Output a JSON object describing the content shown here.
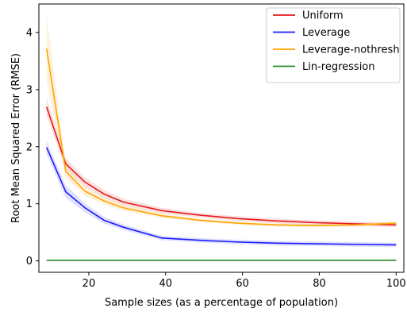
{
  "chart_data": {
    "type": "line",
    "title": "",
    "xlabel": "Sample sizes (as a percentage of population)",
    "ylabel": "Root Mean Squared Error (RMSE)",
    "xlim": [
      7,
      102
    ],
    "ylim": [
      -0.2,
      4.5
    ],
    "xticks": [
      20,
      40,
      60,
      80,
      100
    ],
    "yticks": [
      0,
      1,
      2,
      3,
      4
    ],
    "grid": false,
    "legend_position": "top-right",
    "x": [
      9,
      14,
      19,
      24,
      29,
      39,
      49,
      59,
      69,
      79,
      89,
      100
    ],
    "series": [
      {
        "name": "Uniform",
        "color": "#e41a1c",
        "band_color": "#f4a5a5",
        "values": [
          2.7,
          1.7,
          1.38,
          1.17,
          1.03,
          0.88,
          0.8,
          0.74,
          0.7,
          0.67,
          0.65,
          0.63
        ],
        "lower": [
          2.55,
          1.6,
          1.3,
          1.1,
          0.97,
          0.83,
          0.76,
          0.7,
          0.66,
          0.63,
          0.61,
          0.59
        ],
        "upper": [
          2.85,
          1.8,
          1.46,
          1.24,
          1.09,
          0.93,
          0.84,
          0.78,
          0.74,
          0.71,
          0.69,
          0.67
        ]
      },
      {
        "name": "Leverage",
        "color": "#1a1aff",
        "band_color": "#a8a8f8",
        "values": [
          1.99,
          1.21,
          0.93,
          0.71,
          0.59,
          0.4,
          0.36,
          0.33,
          0.31,
          0.3,
          0.29,
          0.28
        ],
        "lower": [
          1.87,
          1.1,
          0.85,
          0.65,
          0.54,
          0.36,
          0.32,
          0.29,
          0.27,
          0.26,
          0.25,
          0.24
        ],
        "upper": [
          2.11,
          1.32,
          1.01,
          0.77,
          0.64,
          0.44,
          0.4,
          0.37,
          0.35,
          0.34,
          0.33,
          0.32
        ]
      },
      {
        "name": "Leverage-nothresh",
        "color": "#ffa500",
        "band_color": "#fbd89a",
        "values": [
          3.72,
          1.57,
          1.22,
          1.05,
          0.93,
          0.79,
          0.71,
          0.66,
          0.63,
          0.62,
          0.63,
          0.66
        ],
        "lower": [
          3.15,
          1.45,
          1.14,
          0.99,
          0.88,
          0.75,
          0.68,
          0.63,
          0.6,
          0.59,
          0.6,
          0.63
        ],
        "upper": [
          4.3,
          1.69,
          1.3,
          1.11,
          0.98,
          0.83,
          0.74,
          0.69,
          0.66,
          0.65,
          0.66,
          0.69
        ]
      },
      {
        "name": "Lin-regression",
        "color": "#228b22",
        "band_color": "#228b22",
        "values": [
          0.01,
          0.01,
          0.01,
          0.01,
          0.01,
          0.01,
          0.01,
          0.01,
          0.01,
          0.01,
          0.01,
          0.01
        ]
      }
    ]
  }
}
